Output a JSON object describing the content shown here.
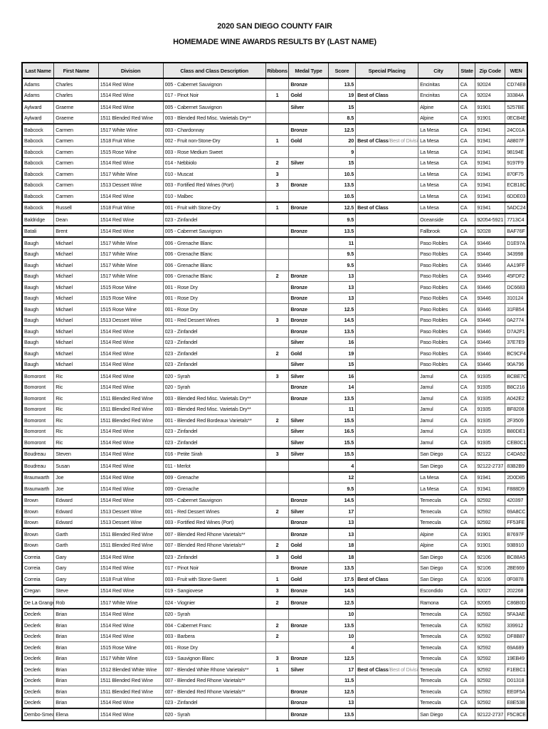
{
  "title": {
    "line1": "2020 SAN DIEGO COUNTY FAIR",
    "line2": "HOMEMADE WINE AWARDS RESULTS BY (LAST NAME)"
  },
  "colors": {
    "header_bg": "#e9e9e9",
    "grid_border": "#6e6e6e",
    "group_border": "#1a1a1a",
    "placing_extra_text": "#8d8d8d"
  },
  "table": {
    "columns": [
      "Last Name",
      "First Name",
      "Division",
      "Class and Class Description",
      "Ribbons",
      "Medal Type",
      "Score",
      "Special Placing",
      "City",
      "State",
      "Zip Code",
      "WEN"
    ],
    "row_fields": [
      "last_name",
      "first_name",
      "division",
      "class_description",
      "ribbons",
      "medal_type",
      "score",
      "special_placing",
      "special_placing_extra",
      "city",
      "state",
      "zip_code",
      "wen"
    ],
    "rows": [
      [
        "Adams",
        "Charles",
        "1514 Red Wine",
        "005 - Cabernet Sauvignon",
        "",
        "Bronze",
        "13.5",
        "",
        "",
        "Encinitas",
        "CA",
        "92024",
        "CD74E8"
      ],
      [
        "Adams",
        "Charles",
        "1514 Red Wine",
        "017 - Pinot Noir",
        "1",
        "Gold",
        "19",
        "Best of Class",
        "",
        "Encinitas",
        "CA",
        "92024",
        "33384A"
      ],
      [
        "Aylward",
        "Graeme",
        "1514 Red Wine",
        "005 - Cabernet Sauvignon",
        "",
        "Silver",
        "15",
        "",
        "",
        "Alpine",
        "CA",
        "91901",
        "5257BE"
      ],
      [
        "Aylward",
        "Graeme",
        "1511 Blended Red Wine",
        "003 - Blended Red Misc. Varietals Dry**",
        "",
        "",
        "8.5",
        "",
        "",
        "Alpine",
        "CA",
        "91901",
        "0ECB4E"
      ],
      [
        "Babcock",
        "Carmen",
        "1517 White Wine",
        "003 - Chardonnay",
        "",
        "Bronze",
        "12.5",
        "",
        "",
        "La Mesa",
        "CA",
        "91941",
        "24C01A"
      ],
      [
        "Babcock",
        "Carmen",
        "1518 Fruit Wine",
        "002 - Fruit non-Stone-Dry",
        "1",
        "Gold",
        "20",
        "Best of Class",
        "/Best of Division",
        "La Mesa",
        "CA",
        "91941",
        "A8807F"
      ],
      [
        "Babcock",
        "Carmen",
        "1515 Rose Wine",
        "003 - Rose Medium Sweet",
        "",
        "",
        "9",
        "",
        "",
        "La Mesa",
        "CA",
        "91941",
        "98194E"
      ],
      [
        "Babcock",
        "Carmen",
        "1514 Red Wine",
        "014 - Nebbiolo",
        "2",
        "Silver",
        "15",
        "",
        "",
        "La Mesa",
        "CA",
        "91941",
        "9197F9"
      ],
      [
        "Babcock",
        "Carmen",
        "1517 White Wine",
        "010 - Muscat",
        "3",
        "",
        "10.5",
        "",
        "",
        "La Mesa",
        "CA",
        "91941",
        "870F75"
      ],
      [
        "Babcock",
        "Carmen",
        "1513 Dessert Wine",
        "003 - Fortified Red Wines (Port)",
        "3",
        "Bronze",
        "13.5",
        "",
        "",
        "La Mesa",
        "CA",
        "91941",
        "ECB18C"
      ],
      [
        "Babcock",
        "Carmen",
        "1514 Red Wine",
        "010 - Malbec",
        "",
        "",
        "10.5",
        "",
        "",
        "La Mesa",
        "CA",
        "91941",
        "6DDE03"
      ],
      [
        "Babcock",
        "Russell",
        "1518 Fruit Wine",
        "001 - Fruit with Stone-Dry",
        "1",
        "Bronze",
        "12.5",
        "Best of Class",
        "",
        "La Mesa",
        "CA",
        "91941",
        "5ADC24"
      ],
      [
        "Baldridge",
        "Dean",
        "1514 Red Wine",
        "023 - Zinfandel",
        "",
        "",
        "9.5",
        "",
        "",
        "Oceanside",
        "CA",
        "92054-5921",
        "7713C4"
      ],
      [
        "Batali",
        "Brent",
        "1514 Red Wine",
        "005 - Cabernet Sauvignon",
        "",
        "Bronze",
        "13.5",
        "",
        "",
        "Fallbrook",
        "CA",
        "92028",
        "BAF76F"
      ],
      [
        "Baugh",
        "Michael",
        "1517 White Wine",
        "006 - Grenache Blanc",
        "",
        "",
        "11",
        "",
        "",
        "Paso Robles",
        "CA",
        "93446",
        "D1E97A"
      ],
      [
        "Baugh",
        "Michael",
        "1517 White Wine",
        "006 - Grenache Blanc",
        "",
        "",
        "9.5",
        "",
        "",
        "Paso Robles",
        "CA",
        "93446",
        "343998"
      ],
      [
        "Baugh",
        "Michael",
        "1517 White Wine",
        "006 - Grenache Blanc",
        "",
        "",
        "9.5",
        "",
        "",
        "Paso Robles",
        "CA",
        "93446",
        "AA19FF"
      ],
      [
        "Baugh",
        "Michael",
        "1517 White Wine",
        "006 - Grenache Blanc",
        "2",
        "Bronze",
        "13",
        "",
        "",
        "Paso Robles",
        "CA",
        "93446",
        "45FDF2"
      ],
      [
        "Baugh",
        "Michael",
        "1515 Rose Wine",
        "001 - Rose Dry",
        "",
        "Bronze",
        "13",
        "",
        "",
        "Paso Robles",
        "CA",
        "93446",
        "DC6683"
      ],
      [
        "Baugh",
        "Michael",
        "1515 Rose Wine",
        "001 - Rose Dry",
        "",
        "Bronze",
        "13",
        "",
        "",
        "Paso Robles",
        "CA",
        "93446",
        "310124"
      ],
      [
        "Baugh",
        "Michael",
        "1515 Rose Wine",
        "001 - Rose Dry",
        "",
        "Bronze",
        "12.5",
        "",
        "",
        "Paso Robles",
        "CA",
        "93446",
        "31FB54"
      ],
      [
        "Baugh",
        "Michael",
        "1513 Dessert Wine",
        "001 - Red Dessert Wines",
        "3",
        "Bronze",
        "14.5",
        "",
        "",
        "Paso Robles",
        "CA",
        "93446",
        "0A2774"
      ],
      [
        "Baugh",
        "Michael",
        "1514 Red Wine",
        "023 - Zinfandel",
        "",
        "Bronze",
        "13.5",
        "",
        "",
        "Paso Robles",
        "CA",
        "93446",
        "D7A2F1"
      ],
      [
        "Baugh",
        "Michael",
        "1514 Red Wine",
        "023 - Zinfandel",
        "",
        "Silver",
        "16",
        "",
        "",
        "Paso Robles",
        "CA",
        "93446",
        "37E7E9"
      ],
      [
        "Baugh",
        "Michael",
        "1514 Red Wine",
        "023 - Zinfandel",
        "2",
        "Gold",
        "19",
        "",
        "",
        "Paso Robles",
        "CA",
        "93446",
        "BC9CF4"
      ],
      [
        "Baugh",
        "Michael",
        "1514 Red Wine",
        "023 - Zinfandel",
        "",
        "Silver",
        "15",
        "",
        "",
        "Paso Robles",
        "CA",
        "93446",
        "90A796"
      ],
      [
        "Bomoront",
        "Ric",
        "1514 Red Wine",
        "020 - Syrah",
        "3",
        "Silver",
        "16",
        "",
        "",
        "Jamul",
        "CA",
        "91935",
        "BCBE7C"
      ],
      [
        "Bomoront",
        "Ric",
        "1514 Red Wine",
        "020 - Syrah",
        "",
        "Bronze",
        "14",
        "",
        "",
        "Jamul",
        "CA",
        "91935",
        "B8C216"
      ],
      [
        "Bomoront",
        "Ric",
        "1511 Blended Red Wine",
        "003 - Blended Red Misc. Varietals Dry**",
        "",
        "Bronze",
        "13.5",
        "",
        "",
        "Jamul",
        "CA",
        "91935",
        "A042E2"
      ],
      [
        "Bomoront",
        "Ric",
        "1511 Blended Red Wine",
        "003 - Blended Red Misc. Varietals Dry**",
        "",
        "",
        "11",
        "",
        "",
        "Jamul",
        "CA",
        "91935",
        "BF8208"
      ],
      [
        "Bomoront",
        "Ric",
        "1511 Blended Red Wine",
        "001 - Blended Red Bordeaux Varietals**",
        "2",
        "Silver",
        "15.5",
        "",
        "",
        "Jamul",
        "CA",
        "91935",
        "2F3509"
      ],
      [
        "Bomoront",
        "Ric",
        "1514 Red Wine",
        "023 - Zinfandel",
        "",
        "Silver",
        "16.5",
        "",
        "",
        "Jamul",
        "CA",
        "91935",
        "B80DE1"
      ],
      [
        "Bomoront",
        "Ric",
        "1514 Red Wine",
        "023 - Zinfandel",
        "",
        "Silver",
        "15.5",
        "",
        "",
        "Jamul",
        "CA",
        "91935",
        "CEB0C1"
      ],
      [
        "Boudreau",
        "Steven",
        "1514 Red Wine",
        "016 - Petite Sirah",
        "3",
        "Silver",
        "15.5",
        "",
        "",
        "San Diego",
        "CA",
        "92122",
        "C4DA52"
      ],
      [
        "Boudreau",
        "Susan",
        "1514 Red Wine",
        "011 - Merlot",
        "",
        "",
        "4",
        "",
        "",
        "San Diego",
        "CA",
        "92122-2737",
        "83B2B9"
      ],
      [
        "Braunwarth",
        "Joe",
        "1514 Red Wine",
        "009 - Grenache",
        "",
        "",
        "12",
        "",
        "",
        "La Mesa",
        "CA",
        "91941",
        "2D0D85"
      ],
      [
        "Braunwarth",
        "Joe",
        "1514 Red Wine",
        "009 - Grenache",
        "",
        "",
        "9.5",
        "",
        "",
        "La Mesa",
        "CA",
        "91941",
        "F888D9"
      ],
      [
        "Brown",
        "Edward",
        "1514 Red Wine",
        "005 - Cabernet Sauvignon",
        "",
        "Bronze",
        "14.5",
        "",
        "",
        "Temecula",
        "CA",
        "92592",
        "420397"
      ],
      [
        "Brown",
        "Edward",
        "1513 Dessert Wine",
        "001 - Red Dessert Wines",
        "2",
        "Silver",
        "17",
        "",
        "",
        "Temecula",
        "CA",
        "92592",
        "69A8CC"
      ],
      [
        "Brown",
        "Edward",
        "1513 Dessert Wine",
        "003 - Fortified Red Wines (Port)",
        "",
        "Bronze",
        "13",
        "",
        "",
        "Temecula",
        "CA",
        "92592",
        "FF53FE"
      ],
      [
        "Brown",
        "Garth",
        "1511 Blended Red Wine",
        "007 - Blended Red Rhone Varietals**",
        "",
        "Bronze",
        "13",
        "",
        "",
        "Alpine",
        "CA",
        "91901",
        "B7697F"
      ],
      [
        "Brown",
        "Garth",
        "1511 Blended Red Wine",
        "007 - Blended Red Rhone Varietals**",
        "2",
        "Gold",
        "18",
        "",
        "",
        "Alpine",
        "CA",
        "91901",
        "93B910"
      ],
      [
        "Correia",
        "Gary",
        "1514 Red Wine",
        "023 - Zinfandel",
        "3",
        "Gold",
        "18",
        "",
        "",
        "San Diego",
        "CA",
        "92106",
        "BC88A5"
      ],
      [
        "Correia",
        "Gary",
        "1514 Red Wine",
        "017 - Pinot Noir",
        "",
        "Bronze",
        "13.5",
        "",
        "",
        "San Diego",
        "CA",
        "92106",
        "2BE669"
      ],
      [
        "Correia",
        "Gary",
        "1518 Fruit Wine",
        "003 - Fruit with Stone-Sweet",
        "1",
        "Gold",
        "17.5",
        "Best of Class",
        "",
        "San Diego",
        "CA",
        "92106",
        "0F0878"
      ],
      [
        "Cregan",
        "Steve",
        "1514 Red Wine",
        "019 - Sangiovese",
        "3",
        "Bronze",
        "14.5",
        "",
        "",
        "Escondido",
        "CA",
        "92027",
        "202268"
      ],
      [
        "De La Grange",
        "Rob",
        "1517 White Wine",
        "024 - Viognier",
        "2",
        "Bronze",
        "12.5",
        "",
        "",
        "Ramona",
        "CA",
        "92065",
        "C86B0D"
      ],
      [
        "Declerk",
        "Brian",
        "1514 Red Wine",
        "020 - Syrah",
        "",
        "",
        "10",
        "",
        "",
        "Temecula",
        "CA",
        "92592",
        "5FA3AE"
      ],
      [
        "Declerk",
        "Brian",
        "1514 Red Wine",
        "004 - Cabernet Franc",
        "2",
        "Bronze",
        "13.5",
        "",
        "",
        "Temecula",
        "CA",
        "92592",
        "339912"
      ],
      [
        "Declerk",
        "Brian",
        "1514 Red Wine",
        "003 - Barbera",
        "2",
        "",
        "10",
        "",
        "",
        "Temecula",
        "CA",
        "92592",
        "DF8B87"
      ],
      [
        "Declerk",
        "Brian",
        "1515 Rose Wine",
        "001 - Rose Dry",
        "",
        "",
        "4",
        "",
        "",
        "Temecula",
        "CA",
        "92592",
        "69A689"
      ],
      [
        "Declerk",
        "Brian",
        "1517 White Wine",
        "019 - Sauvignon Blanc",
        "3",
        "Bronze",
        "12.5",
        "",
        "",
        "Temecula",
        "CA",
        "92592",
        "19EB49"
      ],
      [
        "Declerk",
        "Brian",
        "1512 Blended White Wine",
        "007 - Blended White Rhone Varietals**",
        "1",
        "Silver",
        "17",
        "Best of Class",
        "/Best of Division",
        "Temecula",
        "CA",
        "92592",
        "F1EBC1"
      ],
      [
        "Declerk",
        "Brian",
        "1511 Blended Red Wine",
        "007 - Blended Red Rhone Varietals**",
        "",
        "",
        "11.5",
        "",
        "",
        "Temecula",
        "CA",
        "92592",
        "D01318"
      ],
      [
        "Declerk",
        "Brian",
        "1511 Blended Red Wine",
        "007 - Blended Red Rhone Varietals**",
        "",
        "Bronze",
        "12.5",
        "",
        "",
        "Temecula",
        "CA",
        "92592",
        "EE0F5A"
      ],
      [
        "Declerk",
        "Brian",
        "1514 Red Wine",
        "023 - Zinfandel",
        "",
        "Bronze",
        "13",
        "",
        "",
        "Temecula",
        "CA",
        "92592",
        "E8E53B"
      ],
      [
        "Dembo-Smeaton",
        "Elena",
        "1514 Red Wine",
        "020 - Syrah",
        "",
        "Bronze",
        "13.5",
        "",
        "",
        "San Diego",
        "CA",
        "92122-2737",
        "F5C8CE"
      ]
    ]
  }
}
